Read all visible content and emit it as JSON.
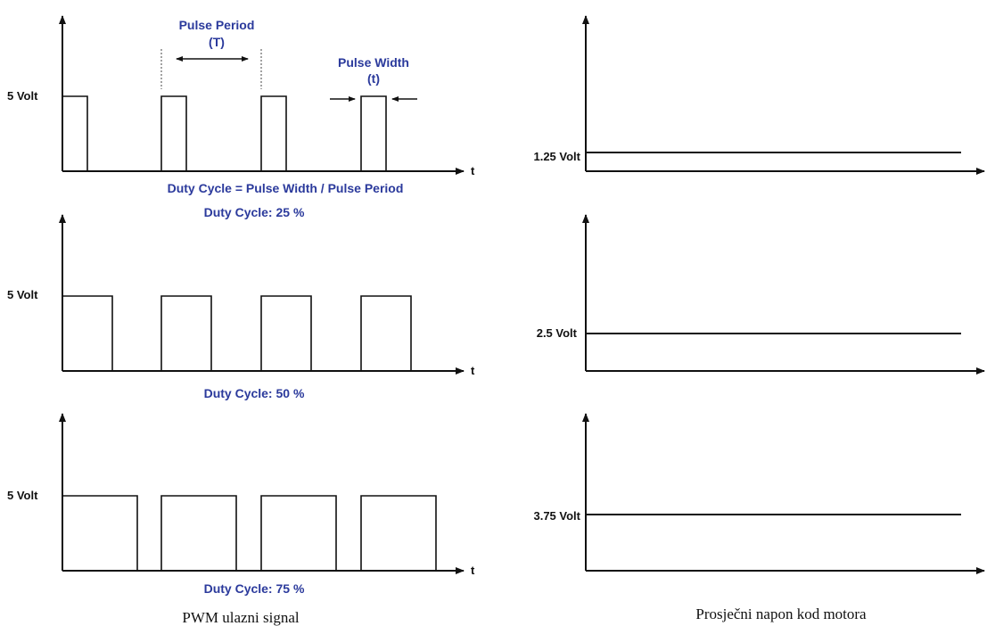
{
  "colors": {
    "annotation": "#2b3a9c",
    "line": "#111111",
    "background": "#ffffff"
  },
  "axis": {
    "t_label": "t"
  },
  "left": {
    "caption": "PWM ulazni signal",
    "high_label": "5 Volt",
    "panels": [
      {
        "duty_percent": 25,
        "duty_label": "Duty Cycle: 25 %",
        "formula": "Duty Cycle = Pulse Width / Pulse Period"
      },
      {
        "duty_percent": 50,
        "duty_label": "Duty Cycle: 50 %"
      },
      {
        "duty_percent": 75,
        "duty_label": "Duty Cycle: 75 %"
      }
    ],
    "annotations": {
      "pulse_period": "Pulse Period",
      "pulse_period_symbol": "(T)",
      "pulse_width": "Pulse Width",
      "pulse_width_symbol": "(t)"
    }
  },
  "right": {
    "caption": "Prosječni napon kod motora",
    "panels": [
      {
        "volt_value": 1.25,
        "volt_label": "1.25 Volt"
      },
      {
        "volt_value": 2.5,
        "volt_label": "2.5 Volt"
      },
      {
        "volt_value": 3.75,
        "volt_label": "3.75 Volt"
      }
    ]
  }
}
